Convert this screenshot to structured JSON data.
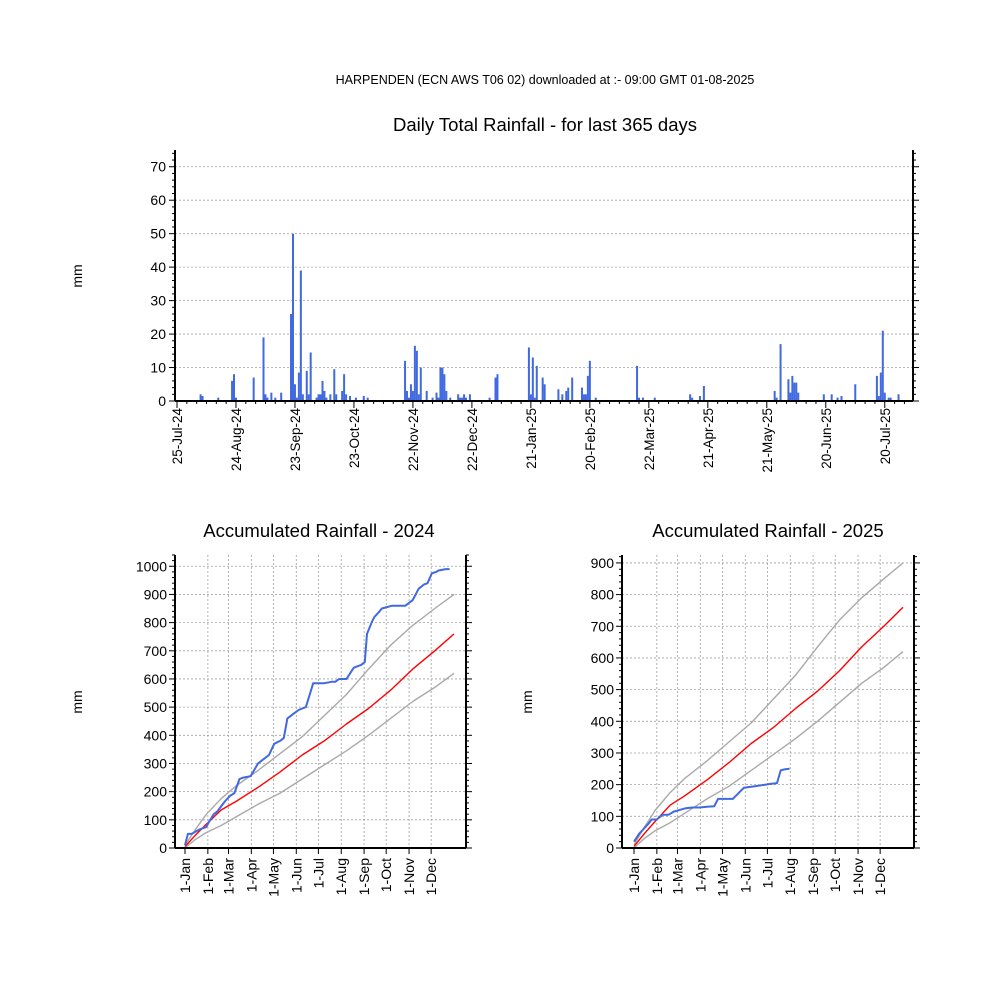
{
  "header": "HARPENDEN (ECN AWS T06 02) downloaded at :- 09:00 GMT 01-08-2025",
  "colors": {
    "rain": "#4169e1",
    "mean": "#ff0000",
    "envelope": "#a9a9a9",
    "grid": "#a0a0a0"
  },
  "chart_data": [
    {
      "type": "bar",
      "title": "Daily Total Rainfall - for last 365 days",
      "ylabel": "mm",
      "ylim": [
        0,
        75
      ],
      "yticks": [
        0,
        10,
        20,
        30,
        40,
        50,
        60,
        70
      ],
      "grid": true,
      "xticks": [
        {
          "day": 0,
          "label": "25-Jul-24"
        },
        {
          "day": 30,
          "label": "24-Aug-24"
        },
        {
          "day": 60,
          "label": "23-Sep-24"
        },
        {
          "day": 90,
          "label": "23-Oct-24"
        },
        {
          "day": 120,
          "label": "22-Nov-24"
        },
        {
          "day": 150,
          "label": "22-Dec-24"
        },
        {
          "day": 180,
          "label": "21-Jan-25"
        },
        {
          "day": 210,
          "label": "20-Feb-25"
        },
        {
          "day": 240,
          "label": "22-Mar-25"
        },
        {
          "day": 270,
          "label": "21-Apr-25"
        },
        {
          "day": 300,
          "label": "21-May-25"
        },
        {
          "day": 330,
          "label": "20-Jun-25"
        },
        {
          "day": 360,
          "label": "20-Jul-25"
        }
      ],
      "series": [
        {
          "x": [
            12,
            13,
            21,
            28,
            29,
            30,
            39,
            44,
            45,
            46,
            48,
            50,
            53,
            58,
            59,
            60,
            61,
            62,
            63,
            64,
            66,
            67,
            68,
            71,
            72,
            73,
            74,
            75,
            76,
            78,
            80,
            81,
            84,
            85,
            86,
            88,
            91,
            95,
            97,
            116,
            117,
            118,
            119,
            120,
            121,
            122,
            123,
            124,
            127,
            130,
            132,
            133,
            134,
            135,
            136,
            137,
            139,
            143,
            144,
            145,
            146,
            147,
            149,
            159,
            162,
            163,
            179,
            180,
            181,
            182,
            183,
            186,
            187,
            194,
            196,
            198,
            199,
            201,
            206,
            207,
            208,
            209,
            210,
            213,
            234,
            235,
            237,
            243,
            261,
            262,
            266,
            268,
            304,
            305,
            307,
            311,
            312,
            313,
            314,
            315,
            316,
            329,
            333,
            336,
            338,
            345,
            356,
            357,
            358,
            359,
            360,
            362,
            363,
            367
          ],
          "y": [
            2,
            1.5,
            1,
            6,
            8,
            1,
            7,
            19,
            2,
            1,
            2.5,
            1,
            2.5,
            26,
            50,
            5,
            1,
            8.5,
            39,
            2,
            9,
            2,
            14.5,
            1,
            2,
            2,
            6,
            3,
            1,
            2,
            9.5,
            2,
            3,
            8,
            2,
            1.5,
            1,
            1.5,
            1,
            12,
            3,
            1,
            5,
            3,
            16.5,
            15,
            2,
            10,
            3,
            1,
            2.5,
            1,
            10,
            10,
            8,
            3,
            1,
            2,
            1,
            1,
            2,
            1,
            2,
            1,
            7,
            8,
            16,
            2,
            13,
            1,
            10.5,
            7,
            5,
            3.5,
            2,
            3,
            4,
            7,
            4,
            2,
            2,
            7.5,
            12,
            1,
            10.5,
            1,
            1,
            1,
            2,
            1,
            1.5,
            4.5,
            3,
            1,
            17,
            6.5,
            2.5,
            7.5,
            5.5,
            5.5,
            2.5,
            2,
            2,
            1,
            1.5,
            5,
            7.5,
            1.5,
            8.5,
            21,
            2.5,
            1,
            1,
            2
          ]
        }
      ]
    },
    {
      "type": "line",
      "title": "Accumulated Rainfall - 2024",
      "ylabel": "mm",
      "ylim": [
        0,
        1000
      ],
      "yticks": [
        0,
        100,
        200,
        300,
        400,
        500,
        600,
        700,
        800,
        900,
        1000
      ],
      "xlim": [
        1,
        366
      ],
      "xticks": [
        {
          "doy": 1,
          "label": "1-Jan"
        },
        {
          "doy": 32,
          "label": "1-Feb"
        },
        {
          "doy": 60,
          "label": "1-Mar"
        },
        {
          "doy": 91,
          "label": "1-Apr"
        },
        {
          "doy": 121,
          "label": "1-May"
        },
        {
          "doy": 152,
          "label": "1-Jun"
        },
        {
          "doy": 182,
          "label": "1-Jul"
        },
        {
          "doy": 213,
          "label": "1-Aug"
        },
        {
          "doy": 244,
          "label": "1-Sep"
        },
        {
          "doy": 274,
          "label": "1-Oct"
        },
        {
          "doy": 305,
          "label": "1-Nov"
        },
        {
          "doy": 335,
          "label": "1-Dec"
        }
      ],
      "grid": true,
      "series": [
        {
          "role": "upper",
          "color": "#a9a9a9",
          "x": [
            1,
            15,
            30,
            50,
            70,
            100,
            130,
            160,
            190,
            220,
            250,
            280,
            310,
            340,
            366
          ],
          "y": [
            10,
            65,
            120,
            175,
            220,
            275,
            335,
            395,
            470,
            545,
            635,
            720,
            790,
            850,
            900
          ]
        },
        {
          "role": "mean",
          "color": "#ff0000",
          "x": [
            1,
            15,
            30,
            50,
            70,
            100,
            130,
            160,
            190,
            220,
            250,
            280,
            310,
            340,
            366
          ],
          "y": [
            5,
            45,
            85,
            135,
            165,
            215,
            270,
            330,
            380,
            440,
            495,
            560,
            635,
            700,
            760
          ]
        },
        {
          "role": "lower",
          "color": "#a9a9a9",
          "x": [
            1,
            15,
            30,
            50,
            70,
            100,
            130,
            160,
            190,
            220,
            250,
            280,
            310,
            340,
            366
          ],
          "y": [
            0,
            30,
            55,
            80,
            110,
            155,
            195,
            245,
            295,
            345,
            400,
            460,
            520,
            570,
            620
          ]
        },
        {
          "role": "actual",
          "color": "#4169e1",
          "x": [
            1,
            5,
            10,
            20,
            30,
            33,
            40,
            45,
            55,
            62,
            68,
            75,
            80,
            90,
            100,
            105,
            115,
            122,
            130,
            135,
            140,
            150,
            155,
            165,
            175,
            190,
            200,
            205,
            210,
            220,
            230,
            240,
            245,
            248,
            255,
            258,
            265,
            268,
            275,
            282,
            287,
            291,
            295,
            300,
            310,
            318,
            325,
            330,
            336,
            342,
            345,
            355,
            360
          ],
          "y": [
            10,
            50,
            50,
            65,
            75,
            90,
            120,
            130,
            165,
            185,
            195,
            245,
            250,
            255,
            300,
            310,
            330,
            370,
            380,
            390,
            460,
            480,
            490,
            500,
            585,
            585,
            590,
            590,
            600,
            600,
            640,
            650,
            660,
            760,
            805,
            820,
            840,
            850,
            855,
            860,
            860,
            860,
            860,
            860,
            880,
            920,
            935,
            940,
            975,
            980,
            985,
            990,
            990
          ]
        }
      ]
    },
    {
      "type": "line",
      "title": "Accumulated Rainfall - 2025",
      "ylabel": "mm",
      "ylim": [
        0,
        900
      ],
      "yticks": [
        0,
        100,
        200,
        300,
        400,
        500,
        600,
        700,
        800,
        900
      ],
      "xlim": [
        1,
        366
      ],
      "xticks": [
        {
          "doy": 1,
          "label": "1-Jan"
        },
        {
          "doy": 32,
          "label": "1-Feb"
        },
        {
          "doy": 60,
          "label": "1-Mar"
        },
        {
          "doy": 91,
          "label": "1-Apr"
        },
        {
          "doy": 121,
          "label": "1-May"
        },
        {
          "doy": 152,
          "label": "1-Jun"
        },
        {
          "doy": 182,
          "label": "1-Jul"
        },
        {
          "doy": 213,
          "label": "1-Aug"
        },
        {
          "doy": 244,
          "label": "1-Sep"
        },
        {
          "doy": 274,
          "label": "1-Oct"
        },
        {
          "doy": 305,
          "label": "1-Nov"
        },
        {
          "doy": 335,
          "label": "1-Dec"
        }
      ],
      "grid": true,
      "series": [
        {
          "role": "upper",
          "color": "#a9a9a9",
          "x": [
            1,
            15,
            30,
            50,
            70,
            100,
            130,
            160,
            190,
            220,
            250,
            280,
            310,
            340,
            366
          ],
          "y": [
            10,
            65,
            120,
            175,
            220,
            275,
            335,
            395,
            470,
            545,
            635,
            720,
            790,
            850,
            900
          ]
        },
        {
          "role": "mean",
          "color": "#ff0000",
          "x": [
            1,
            15,
            30,
            50,
            70,
            100,
            130,
            160,
            190,
            220,
            250,
            280,
            310,
            340,
            366
          ],
          "y": [
            5,
            45,
            85,
            135,
            165,
            215,
            270,
            330,
            380,
            440,
            495,
            560,
            635,
            700,
            760
          ]
        },
        {
          "role": "lower",
          "color": "#a9a9a9",
          "x": [
            1,
            15,
            30,
            50,
            70,
            100,
            130,
            160,
            190,
            220,
            250,
            280,
            310,
            340,
            366
          ],
          "y": [
            0,
            30,
            55,
            80,
            110,
            155,
            195,
            245,
            295,
            345,
            400,
            460,
            520,
            570,
            620
          ]
        },
        {
          "role": "actual",
          "color": "#4169e1",
          "x": [
            1,
            8,
            14,
            20,
            25,
            32,
            40,
            48,
            55,
            60,
            70,
            80,
            90,
            100,
            110,
            115,
            125,
            135,
            150,
            165,
            180,
            185,
            195,
            200,
            205,
            212
          ],
          "y": [
            20,
            45,
            60,
            75,
            90,
            90,
            105,
            105,
            115,
            118,
            125,
            128,
            128,
            130,
            132,
            155,
            155,
            155,
            190,
            195,
            200,
            202,
            205,
            245,
            248,
            250
          ]
        }
      ]
    }
  ]
}
